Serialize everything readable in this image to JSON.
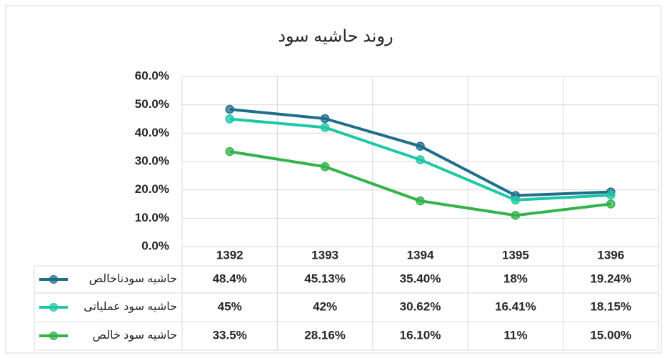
{
  "chart_data": {
    "type": "line",
    "title": "روند حاشیه سود",
    "categories": [
      "1392",
      "1393",
      "1394",
      "1395",
      "1396"
    ],
    "series": [
      {
        "name": "حاشیه سودناخالص",
        "color": "#1f6e8c",
        "values": [
          48.4,
          45.13,
          35.4,
          18,
          19.24
        ],
        "value_labels": [
          "48.4%",
          "45.13%",
          "35.40%",
          "18%",
          "19.24%"
        ]
      },
      {
        "name": "حاشیه سود عملیاتی",
        "color": "#1ec8a5",
        "values": [
          45,
          42,
          30.62,
          16.41,
          18.15
        ],
        "value_labels": [
          "45%",
          "42%",
          "30.62%",
          "16.41%",
          "18.15%"
        ]
      },
      {
        "name": "حاشیه سود خالص",
        "color": "#33b34a",
        "values": [
          33.5,
          28.16,
          16.1,
          11,
          15.0
        ],
        "value_labels": [
          "33.5%",
          "28.16%",
          "16.10%",
          "11%",
          "15.00%"
        ]
      }
    ],
    "ylim": [
      0,
      60
    ],
    "yticks": [
      {
        "value": 0,
        "label": "0.0%"
      },
      {
        "value": 10,
        "label": "10.0%"
      },
      {
        "value": 20,
        "label": "20.0%"
      },
      {
        "value": 30,
        "label": "30.0%"
      },
      {
        "value": 40,
        "label": "40.0%"
      },
      {
        "value": 50,
        "label": "50.0%"
      },
      {
        "value": 60,
        "label": "60.0%"
      }
    ],
    "grid": true
  }
}
